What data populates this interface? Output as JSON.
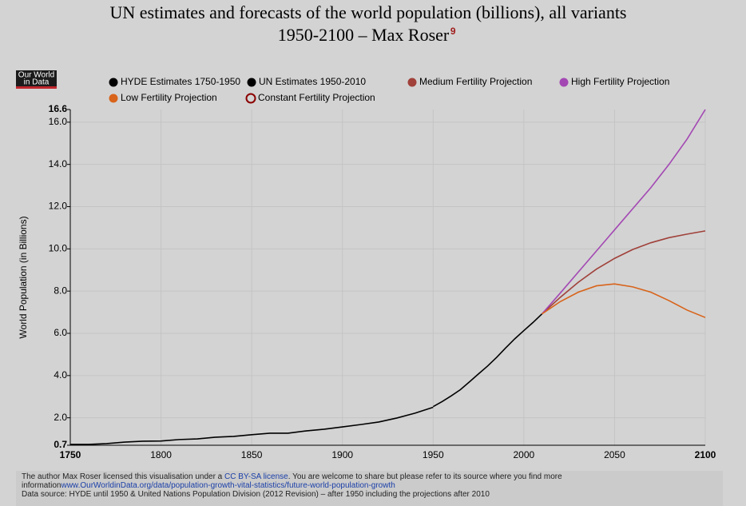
{
  "chart_data": {
    "type": "line",
    "title": [
      "UN estimates and forecasts of the world population (billions), all variants",
      "1950-2100 – Max Roser"
    ],
    "title_footnote": "9",
    "logo": [
      "Our World",
      "in Data"
    ],
    "y_label": "World Population (in Billions)",
    "xlim": [
      1750,
      2100
    ],
    "xticks": [
      1750,
      1800,
      1850,
      1900,
      1950,
      2000,
      2050,
      2100
    ],
    "ylim": [
      0.7,
      16.6
    ],
    "yticks": [
      0.7,
      {
        "value": 2,
        "label": "2.0"
      },
      {
        "value": 4,
        "label": "4.0"
      },
      {
        "value": 6,
        "label": "6.0"
      },
      {
        "value": 8,
        "label": "8.0"
      },
      {
        "value": 10,
        "label": "10.0"
      },
      {
        "value": 12,
        "label": "12.0"
      },
      {
        "value": 14,
        "label": "14.0"
      },
      {
        "value": 16,
        "label": "16.0"
      },
      16.6
    ],
    "grid": true,
    "series": [
      {
        "name": "HYDE Estimates 1750-1950",
        "color": "#000000",
        "visible": true,
        "x": [
          1750,
          1760,
          1770,
          1780,
          1790,
          1800,
          1810,
          1820,
          1830,
          1840,
          1850,
          1860,
          1870,
          1880,
          1890,
          1900,
          1910,
          1920,
          1930,
          1940,
          1950
        ],
        "values": [
          0.74,
          0.74,
          0.78,
          0.85,
          0.89,
          0.9,
          0.97,
          1.0,
          1.08,
          1.12,
          1.2,
          1.27,
          1.27,
          1.38,
          1.46,
          1.57,
          1.68,
          1.8,
          1.99,
          2.22,
          2.5
        ]
      },
      {
        "name": "UN Estimates 1950-2010",
        "color": "#000000",
        "visible": true,
        "x": [
          1950,
          1955,
          1960,
          1965,
          1970,
          1975,
          1980,
          1985,
          1990,
          1995,
          2000,
          2005,
          2010
        ],
        "values": [
          2.53,
          2.77,
          3.04,
          3.33,
          3.7,
          4.08,
          4.45,
          4.86,
          5.31,
          5.74,
          6.13,
          6.51,
          6.92
        ]
      },
      {
        "name": "Medium Fertility Projection",
        "color": "#a0413a",
        "visible": true,
        "x": [
          2010,
          2020,
          2030,
          2040,
          2050,
          2060,
          2070,
          2080,
          2090,
          2100
        ],
        "values": [
          6.92,
          7.7,
          8.42,
          9.04,
          9.55,
          9.97,
          10.29,
          10.53,
          10.7,
          10.85
        ]
      },
      {
        "name": "High Fertility Projection",
        "color": "#a347b3",
        "visible": true,
        "x": [
          2010,
          2020,
          2030,
          2040,
          2050,
          2060,
          2070,
          2080,
          2090,
          2100
        ],
        "values": [
          6.92,
          7.9,
          8.9,
          9.9,
          10.9,
          11.9,
          12.9,
          14.0,
          15.2,
          16.6
        ]
      },
      {
        "name": "Low Fertility Projection",
        "color": "#d8631a",
        "visible": true,
        "x": [
          2010,
          2020,
          2030,
          2040,
          2050,
          2060,
          2070,
          2080,
          2090,
          2100
        ],
        "values": [
          6.92,
          7.5,
          7.95,
          8.25,
          8.34,
          8.2,
          7.95,
          7.55,
          7.1,
          6.75
        ]
      },
      {
        "name": "Constant Fertility Projection",
        "color": "#8b0000",
        "visible": false
      }
    ],
    "notes": [
      "The author Max Roser licensed this visualisation under a ",
      "CC BY-SA license",
      ". You are welcome to share but please refer to its source where you find more information",
      "www.OurWorldinData.org/data/population-growth-vital-statistics/future-world-population-growth",
      "Data source: HYDE until 1950 & United Nations Population Division (2012 Revision) – after 1950 including the projections after 2010"
    ]
  }
}
